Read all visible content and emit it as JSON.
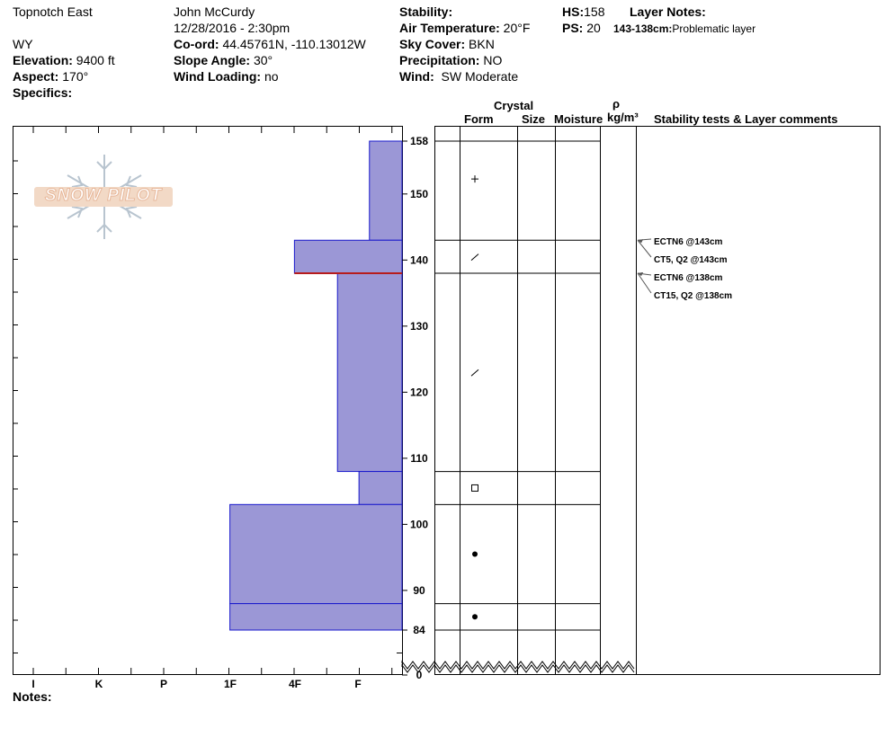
{
  "site": {
    "location": "Topnotch East",
    "state": "WY",
    "elevation_label": "Elevation:",
    "elevation": "9400 ft",
    "aspect_label": "Aspect:",
    "aspect": "170°",
    "specifics_label": "Specifics:"
  },
  "observer": {
    "name": "John McCurdy",
    "datetime": "12/28/2016 - 2:30pm",
    "coord_label": "Co-ord:",
    "coord": "44.45761N, -110.13012W",
    "slope_label": "Slope Angle:",
    "slope": "30°",
    "wind_loading_label": "Wind Loading:",
    "wind_loading": "no"
  },
  "conditions": {
    "stability_label": "Stability:",
    "air_temp_label": "Air Temperature:",
    "air_temp": "20°F",
    "sky_label": "Sky Cover:",
    "sky": "BKN",
    "precip_label": "Precipitation:",
    "precip": "NO",
    "wind_label": "Wind:",
    "wind": "SW Moderate"
  },
  "depths": {
    "hs_label": "HS:",
    "hs": "158",
    "ps_label": "PS:",
    "ps": "20",
    "layer_notes_label": "Layer Notes:",
    "layer_note_range": "143-138cm:",
    "layer_note_text": "Problematic layer"
  },
  "logo": {
    "text": "SNOW PILOT"
  },
  "columns": {
    "crystal": "Crystal",
    "form": "Form",
    "size": "Size",
    "moisture": "Moisture",
    "rho": "ρ",
    "density_unit": "kg/m³",
    "stability": "Stability tests & Layer comments"
  },
  "notes_label": "Notes:",
  "chart_data": {
    "type": "snow-profile",
    "hardness_scale": [
      "I",
      "K",
      "P",
      "1F",
      "4F",
      "F"
    ],
    "depth_ticks": [
      158,
      150,
      140,
      130,
      120,
      110,
      100,
      90,
      84,
      0
    ],
    "y_range_cm": [
      84,
      158
    ],
    "layers": [
      {
        "top": 158,
        "bottom": 143,
        "hardness": 0.5,
        "form": "+"
      },
      {
        "top": 143,
        "bottom": 138,
        "hardness": 1.65,
        "form": "/"
      },
      {
        "top": 138,
        "bottom": 108,
        "hardness": 0.99,
        "form": "/"
      },
      {
        "top": 108,
        "bottom": 103,
        "hardness": 0.66,
        "form": "□"
      },
      {
        "top": 103,
        "bottom": 88,
        "hardness": 2.64,
        "form": "●"
      },
      {
        "top": 88,
        "bottom": 84,
        "hardness": 2.64,
        "form": "●"
      }
    ],
    "problematic_layer": {
      "top": 143,
      "bottom": 138,
      "color": "#b71c1c"
    },
    "stability_tests": [
      {
        "text": "ECTN6 @143cm",
        "depth": 143
      },
      {
        "text": "CT5, Q2 @143cm",
        "depth": 143
      },
      {
        "text": "ECTN6 @138cm",
        "depth": 138
      },
      {
        "text": "CT15, Q2 @138cm",
        "depth": 138
      }
    ],
    "colors": {
      "layer_fill": "#9b97d6",
      "layer_stroke": "#1a1acc"
    }
  }
}
